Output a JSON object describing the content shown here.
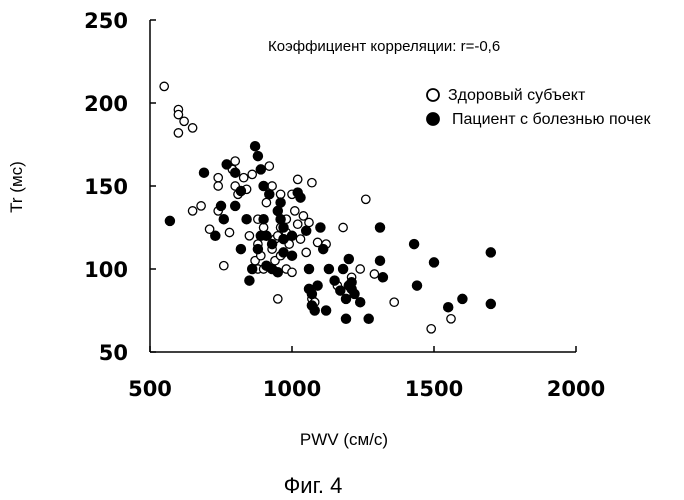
{
  "chart_data": {
    "type": "scatter",
    "xlabel": "PWV (см/с)",
    "ylabel": "Tr (мс)",
    "xlim": [
      500,
      2000
    ],
    "ylim": [
      50,
      250
    ],
    "xticks": [
      500,
      1000,
      1500,
      2000
    ],
    "yticks": [
      50,
      100,
      150,
      200,
      250
    ],
    "annotation": "Коэффициент корреляции: r=-0,6",
    "caption": "Фиг. 4",
    "legend_position": "top-right",
    "grid": false,
    "series": [
      {
        "name": "Здоровый субъект",
        "marker": "open-circle",
        "points": [
          [
            550,
            210
          ],
          [
            600,
            196
          ],
          [
            600,
            193
          ],
          [
            600,
            182
          ],
          [
            620,
            189
          ],
          [
            650,
            135
          ],
          [
            650,
            185
          ],
          [
            680,
            138
          ],
          [
            710,
            124
          ],
          [
            740,
            135
          ],
          [
            740,
            155
          ],
          [
            740,
            150
          ],
          [
            760,
            102
          ],
          [
            780,
            122
          ],
          [
            790,
            160
          ],
          [
            800,
            165
          ],
          [
            800,
            150
          ],
          [
            810,
            145
          ],
          [
            830,
            155
          ],
          [
            840,
            148
          ],
          [
            850,
            120
          ],
          [
            860,
            157
          ],
          [
            870,
            105
          ],
          [
            880,
            130
          ],
          [
            880,
            115
          ],
          [
            880,
            100
          ],
          [
            890,
            160
          ],
          [
            890,
            108
          ],
          [
            900,
            100
          ],
          [
            900,
            125
          ],
          [
            910,
            140
          ],
          [
            920,
            162
          ],
          [
            930,
            150
          ],
          [
            930,
            112
          ],
          [
            940,
            105
          ],
          [
            940,
            118
          ],
          [
            950,
            120
          ],
          [
            950,
            82
          ],
          [
            960,
            145
          ],
          [
            960,
            125
          ],
          [
            960,
            108
          ],
          [
            970,
            110
          ],
          [
            980,
            130
          ],
          [
            980,
            122
          ],
          [
            980,
            100
          ],
          [
            990,
            115
          ],
          [
            1000,
            145
          ],
          [
            1000,
            98
          ],
          [
            1010,
            135
          ],
          [
            1020,
            127
          ],
          [
            1020,
            154
          ],
          [
            1030,
            118
          ],
          [
            1040,
            132
          ],
          [
            1050,
            110
          ],
          [
            1060,
            128
          ],
          [
            1070,
            152
          ],
          [
            1070,
            82
          ],
          [
            1080,
            80
          ],
          [
            1090,
            116
          ],
          [
            1120,
            115
          ],
          [
            1160,
            90
          ],
          [
            1180,
            125
          ],
          [
            1210,
            95
          ],
          [
            1240,
            100
          ],
          [
            1260,
            142
          ],
          [
            1290,
            97
          ],
          [
            1360,
            80
          ],
          [
            1490,
            64
          ],
          [
            1560,
            70
          ]
        ]
      },
      {
        "name": "Пациент с болезнью почек",
        "marker": "filled-circle",
        "points": [
          [
            570,
            129
          ],
          [
            690,
            158
          ],
          [
            730,
            120
          ],
          [
            750,
            138
          ],
          [
            760,
            130
          ],
          [
            770,
            163
          ],
          [
            800,
            158
          ],
          [
            800,
            138
          ],
          [
            820,
            147
          ],
          [
            820,
            112
          ],
          [
            840,
            130
          ],
          [
            850,
            93
          ],
          [
            860,
            100
          ],
          [
            870,
            174
          ],
          [
            880,
            168
          ],
          [
            880,
            112
          ],
          [
            890,
            120
          ],
          [
            890,
            160
          ],
          [
            900,
            150
          ],
          [
            900,
            130
          ],
          [
            910,
            120
          ],
          [
            910,
            102
          ],
          [
            920,
            145
          ],
          [
            930,
            115
          ],
          [
            930,
            100
          ],
          [
            950,
            135
          ],
          [
            950,
            98
          ],
          [
            960,
            140
          ],
          [
            960,
            130
          ],
          [
            970,
            125
          ],
          [
            970,
            118
          ],
          [
            970,
            110
          ],
          [
            1000,
            120
          ],
          [
            1000,
            108
          ],
          [
            1020,
            146
          ],
          [
            1030,
            143
          ],
          [
            1050,
            123
          ],
          [
            1060,
            100
          ],
          [
            1060,
            88
          ],
          [
            1070,
            78
          ],
          [
            1070,
            85
          ],
          [
            1080,
            75
          ],
          [
            1090,
            90
          ],
          [
            1100,
            125
          ],
          [
            1110,
            112
          ],
          [
            1120,
            75
          ],
          [
            1130,
            100
          ],
          [
            1150,
            93
          ],
          [
            1170,
            87
          ],
          [
            1180,
            100
          ],
          [
            1190,
            70
          ],
          [
            1190,
            82
          ],
          [
            1200,
            90
          ],
          [
            1200,
            106
          ],
          [
            1210,
            88
          ],
          [
            1210,
            92
          ],
          [
            1220,
            85
          ],
          [
            1240,
            80
          ],
          [
            1270,
            70
          ],
          [
            1310,
            125
          ],
          [
            1310,
            105
          ],
          [
            1320,
            95
          ],
          [
            1430,
            115
          ],
          [
            1440,
            90
          ],
          [
            1500,
            104
          ],
          [
            1550,
            77
          ],
          [
            1600,
            82
          ],
          [
            1700,
            110
          ],
          [
            1700,
            79
          ]
        ]
      }
    ]
  }
}
